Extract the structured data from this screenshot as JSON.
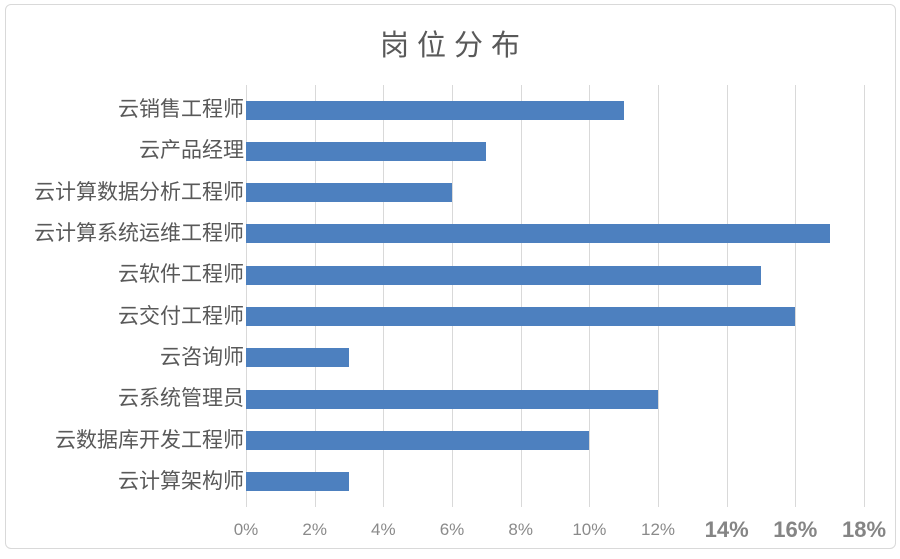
{
  "title": "岗位分布",
  "chart_data": {
    "type": "bar",
    "orientation": "horizontal",
    "title": "岗位分布",
    "categories": [
      "云销售工程师",
      "云产品经理",
      "云计算数据分析工程师",
      "云计算系统运维工程师",
      "云软件工程师",
      "云交付工程师",
      "云咨询师",
      "云系统管理员",
      "云数据库开发工程师",
      "云计算架构师"
    ],
    "values": [
      11,
      7,
      6,
      17,
      15,
      16,
      3,
      12,
      10,
      3
    ],
    "unit": "%",
    "xlabel": "",
    "ylabel": "",
    "xlim": [
      0,
      18
    ],
    "x_tick_step": 2,
    "x_ticks": [
      "0%",
      "2%",
      "4%",
      "6%",
      "8%",
      "10%",
      "12%",
      "14%",
      "16%",
      "18%"
    ],
    "grid": "vertical-on",
    "legend": "none",
    "bar_color": "#4d80bf",
    "gridline_color": "#d9d9d9",
    "title_color": "#595959",
    "category_color": "#595959",
    "tick_color": "#8a8a8a"
  }
}
